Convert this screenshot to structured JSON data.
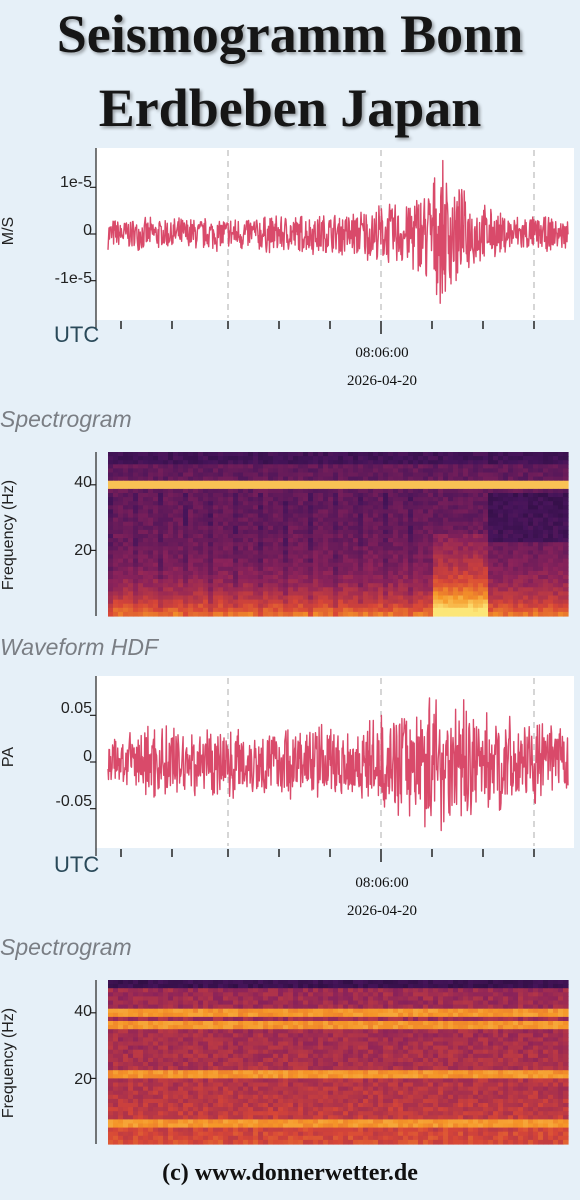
{
  "title_line1": "Seismogramm Bonn",
  "title_line2": "Erdbeben Japan",
  "footer": "(c) www.donnerwetter.de",
  "colors": {
    "waveform": "#d94a6a",
    "grid": "#c8c8c8",
    "background": "#e6f0f8"
  },
  "chart_data": [
    {
      "type": "line",
      "ylabel": "M/S",
      "yticks": [
        "1e-5",
        "0",
        "-1e-5"
      ],
      "ylim": [
        -1.8e-05,
        1.8e-05
      ],
      "xlabel": "UTC",
      "x_tick_label_time": "08:06:00",
      "x_tick_label_date": "2026-04-20",
      "grid": "vertical dashed",
      "series": [
        {
          "values_envelope": [
            {
              "t": 0.0,
              "amp": 3.5e-06
            },
            {
              "t": 0.25,
              "amp": 4e-06
            },
            {
              "t": 0.5,
              "amp": 5e-06
            },
            {
              "t": 0.65,
              "amp": 8e-06
            },
            {
              "t": 0.73,
              "amp": 1.6e-05
            },
            {
              "t": 0.78,
              "amp": 9e-06
            },
            {
              "t": 0.85,
              "amp": 5e-06
            },
            {
              "t": 1.0,
              "amp": 3.5e-06
            }
          ]
        }
      ]
    },
    {
      "type": "heatmap",
      "label": "Spectrogram",
      "ylabel": "Frequency (Hz)",
      "yticks": [
        "40",
        "20"
      ],
      "ylim": [
        0,
        50
      ],
      "bands": [
        40
      ]
    },
    {
      "type": "line",
      "label": "Waveform HDF",
      "ylabel": "PA",
      "yticks": [
        "0.05",
        "0",
        "-0.05"
      ],
      "ylim": [
        -0.09,
        0.09
      ],
      "xlabel": "UTC",
      "x_tick_label_time": "08:06:00",
      "x_tick_label_date": "2026-04-20",
      "grid": "vertical dashed",
      "series": [
        {
          "values_envelope": [
            {
              "t": 0.0,
              "amp": 0.025
            },
            {
              "t": 0.1,
              "amp": 0.045
            },
            {
              "t": 0.3,
              "amp": 0.04
            },
            {
              "t": 0.55,
              "amp": 0.045
            },
            {
              "t": 0.62,
              "amp": 0.055
            },
            {
              "t": 0.72,
              "amp": 0.085
            },
            {
              "t": 0.8,
              "amp": 0.06
            },
            {
              "t": 1.0,
              "amp": 0.04
            }
          ]
        }
      ]
    },
    {
      "type": "heatmap",
      "label": "Spectrogram",
      "ylabel": "Frequency (Hz)",
      "yticks": [
        "40",
        "20"
      ],
      "ylim": [
        0,
        50
      ],
      "bands": [
        40,
        36,
        21,
        6
      ]
    }
  ]
}
